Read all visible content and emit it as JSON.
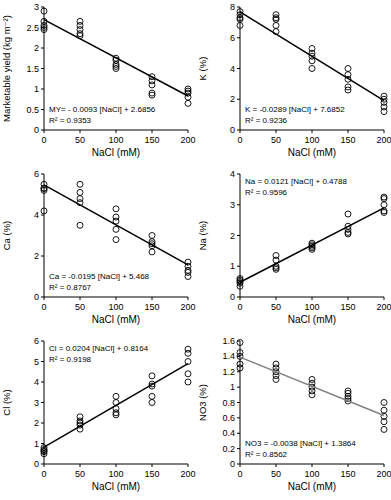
{
  "chart_data": [
    {
      "type": "scatter",
      "x_label": "NaCl (mM)",
      "y_label": "Marketable yield (kg m⁻²)",
      "xlim": [
        0,
        200
      ],
      "xticks": [
        0,
        50,
        100,
        150,
        200
      ],
      "ylim": [
        0,
        3
      ],
      "yticks": [
        0,
        0.5,
        1,
        1.5,
        2,
        2.5,
        3
      ],
      "grid": false,
      "annotations": [
        "MY= - 0.0093 [NaCl] + 2.6856",
        "R² = 0.9353"
      ],
      "series": [
        {
          "type": "scatter",
          "marker": "circle-open",
          "color": "#000000",
          "x": [
            0,
            0,
            0,
            0,
            0,
            50,
            50,
            50,
            50,
            50,
            100,
            100,
            100,
            100,
            100,
            150,
            150,
            150,
            150,
            150,
            200,
            200,
            200,
            200,
            200
          ],
          "values": [
            2.9,
            2.65,
            2.55,
            2.5,
            2.45,
            2.65,
            2.55,
            2.45,
            2.35,
            2.3,
            1.75,
            1.7,
            1.6,
            1.55,
            1.5,
            1.3,
            1.2,
            1.1,
            0.9,
            0.85,
            1.0,
            0.95,
            0.9,
            0.8,
            0.65
          ]
        },
        {
          "type": "line",
          "line_style": "solid",
          "color": "#000000",
          "x": [
            0,
            200
          ],
          "values": [
            2.69,
            0.83
          ]
        }
      ]
    },
    {
      "type": "scatter",
      "x_label": "NaCl (mM)",
      "y_label": "K (%)",
      "xlim": [
        0,
        200
      ],
      "xticks": [
        0,
        50,
        100,
        150,
        200
      ],
      "ylim": [
        0,
        8
      ],
      "yticks": [
        0,
        2,
        4,
        6,
        8
      ],
      "grid": false,
      "annotations": [
        "K = -0.0289 [NaCl] + 7.6852",
        "R² = 0.9236"
      ],
      "series": [
        {
          "type": "scatter",
          "marker": "circle-open",
          "color": "#000000",
          "x": [
            0,
            0,
            0,
            0,
            0,
            50,
            50,
            50,
            50,
            50,
            100,
            100,
            100,
            100,
            100,
            150,
            150,
            150,
            150,
            150,
            200,
            200,
            200,
            200,
            200
          ],
          "values": [
            7.7,
            7.5,
            7.3,
            7.2,
            6.8,
            7.5,
            7.3,
            7.2,
            6.8,
            6.4,
            5.3,
            5.0,
            4.8,
            4.5,
            4.0,
            4.0,
            3.6,
            3.3,
            2.8,
            2.6,
            2.2,
            2.0,
            1.8,
            1.5,
            1.2
          ]
        },
        {
          "type": "line",
          "line_style": "solid",
          "color": "#000000",
          "x": [
            0,
            200
          ],
          "values": [
            7.69,
            1.91
          ]
        }
      ]
    },
    {
      "type": "scatter",
      "x_label": "NaCl (mM)",
      "y_label": "Ca (%)",
      "xlim": [
        0,
        200
      ],
      "xticks": [
        0,
        50,
        100,
        150,
        200
      ],
      "ylim": [
        0,
        6
      ],
      "yticks": [
        0,
        2,
        4,
        6
      ],
      "grid": false,
      "annotations": [
        "Ca = -0.0195 [NaCl] + 5.468",
        "R² = 0.8767"
      ],
      "series": [
        {
          "type": "scatter",
          "marker": "circle-open",
          "color": "#000000",
          "x": [
            0,
            0,
            0,
            0,
            0,
            50,
            50,
            50,
            50,
            50,
            100,
            100,
            100,
            100,
            100,
            150,
            150,
            150,
            150,
            150,
            200,
            200,
            200,
            200,
            200
          ],
          "values": [
            5.5,
            5.3,
            5.3,
            5.2,
            4.2,
            5.5,
            5.1,
            4.8,
            4.6,
            3.5,
            4.3,
            3.9,
            3.7,
            3.3,
            2.8,
            3.0,
            2.7,
            2.6,
            2.5,
            2.2,
            1.7,
            1.5,
            1.3,
            1.2,
            1.0
          ]
        },
        {
          "type": "line",
          "line_style": "solid",
          "color": "#000000",
          "x": [
            0,
            200
          ],
          "values": [
            5.47,
            1.57
          ]
        }
      ]
    },
    {
      "type": "scatter",
      "x_label": "NaCl (mM)",
      "y_label": "Na (%)",
      "xlim": [
        0,
        200
      ],
      "xticks": [
        0,
        50,
        100,
        150,
        200
      ],
      "ylim": [
        0,
        4
      ],
      "yticks": [
        0,
        1,
        2,
        3,
        4
      ],
      "grid": false,
      "annotations": [
        "Na = 0.0121 [NaCl] + 0.4788",
        "R² = 0.9596"
      ],
      "series": [
        {
          "type": "scatter",
          "marker": "circle-open",
          "color": "#000000",
          "x": [
            0,
            0,
            0,
            0,
            0,
            50,
            50,
            50,
            50,
            50,
            100,
            100,
            100,
            100,
            100,
            150,
            150,
            150,
            150,
            150,
            200,
            200,
            200,
            200,
            200
          ],
          "values": [
            0.6,
            0.55,
            0.5,
            0.45,
            0.35,
            1.35,
            1.2,
            1.0,
            0.95,
            0.9,
            1.75,
            1.7,
            1.65,
            1.6,
            1.55,
            2.7,
            2.3,
            2.2,
            2.1,
            2.05,
            3.25,
            3.2,
            3.0,
            2.8,
            2.75
          ]
        },
        {
          "type": "line",
          "line_style": "solid",
          "color": "#000000",
          "x": [
            0,
            200
          ],
          "values": [
            0.48,
            2.9
          ]
        }
      ]
    },
    {
      "type": "scatter",
      "x_label": "NaCl (mM)",
      "y_label": "Cl (%)",
      "xlim": [
        0,
        200
      ],
      "xticks": [
        0,
        50,
        100,
        150,
        200
      ],
      "ylim": [
        0,
        6
      ],
      "yticks": [
        0,
        1,
        2,
        3,
        4,
        5,
        6
      ],
      "grid": false,
      "annotations": [
        "Cl = 0.0204 [NaCl] + 0.8164",
        "R² = 0.9198"
      ],
      "series": [
        {
          "type": "scatter",
          "marker": "circle-open",
          "color": "#000000",
          "x": [
            0,
            0,
            0,
            0,
            0,
            50,
            50,
            50,
            50,
            50,
            100,
            100,
            100,
            100,
            100,
            150,
            150,
            150,
            150,
            150,
            200,
            200,
            200,
            200,
            200
          ],
          "values": [
            0.8,
            0.7,
            0.65,
            0.6,
            0.5,
            2.3,
            2.1,
            2.0,
            1.9,
            1.7,
            3.3,
            3.0,
            2.7,
            2.5,
            2.4,
            4.3,
            3.9,
            3.8,
            3.3,
            3.0,
            5.6,
            5.4,
            5.0,
            4.4,
            4.0
          ]
        },
        {
          "type": "line",
          "line_style": "solid",
          "color": "#000000",
          "x": [
            0,
            200
          ],
          "values": [
            0.82,
            4.9
          ]
        }
      ]
    },
    {
      "type": "scatter",
      "x_label": "NaCl (mM)",
      "y_label": "NO3 (%)",
      "xlim": [
        0,
        200
      ],
      "xticks": [
        0,
        50,
        100,
        150,
        200
      ],
      "ylim": [
        0,
        1.6
      ],
      "yticks": [
        0,
        0.2,
        0.4,
        0.6,
        0.8,
        1,
        1.2,
        1.4,
        1.6
      ],
      "grid": false,
      "annotations": [
        "NO3 = -0.0038 [NaCl] + 1.3864",
        "R² = 0.8562"
      ],
      "series": [
        {
          "type": "scatter",
          "marker": "circle-open",
          "color": "#000000",
          "x": [
            0,
            0,
            0,
            0,
            0,
            50,
            50,
            50,
            50,
            50,
            100,
            100,
            100,
            100,
            100,
            150,
            150,
            150,
            150,
            150,
            200,
            200,
            200,
            200,
            200
          ],
          "values": [
            1.58,
            1.45,
            1.4,
            1.3,
            1.25,
            1.3,
            1.25,
            1.2,
            1.15,
            1.1,
            1.1,
            1.05,
            1.0,
            0.95,
            0.9,
            0.95,
            0.92,
            0.88,
            0.85,
            0.82,
            0.8,
            0.7,
            0.62,
            0.55,
            0.45
          ]
        },
        {
          "type": "line",
          "line_style": "solid",
          "color": "#808080",
          "x": [
            0,
            200
          ],
          "values": [
            1.39,
            0.63
          ]
        }
      ]
    }
  ]
}
